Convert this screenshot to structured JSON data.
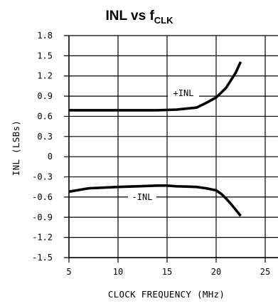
{
  "chart_data": {
    "type": "line",
    "title": {
      "main": "INL vs f",
      "sub": "CLK"
    },
    "xlabel": "CLOCK FREQUENCY (MHz)",
    "ylabel": "INL (LSBs)",
    "xlim": [
      5,
      25
    ],
    "ylim": [
      -1.5,
      1.8
    ],
    "xticks": [
      5,
      10,
      15,
      20,
      25
    ],
    "yticks": [
      1.8,
      1.5,
      1.2,
      0.9,
      0.6,
      0.3,
      0,
      -0.3,
      -0.6,
      -0.9,
      -1.2,
      -1.5
    ],
    "grid": true,
    "series": [
      {
        "name": "+INL",
        "x": [
          5,
          8,
          10,
          12,
          14,
          16,
          18,
          19,
          20,
          21,
          22,
          22.5
        ],
        "y": [
          0.69,
          0.69,
          0.69,
          0.69,
          0.69,
          0.7,
          0.73,
          0.8,
          0.88,
          1.02,
          1.25,
          1.41
        ]
      },
      {
        "name": "-INL",
        "x": [
          5,
          7,
          10,
          12,
          14,
          15,
          16,
          18,
          19,
          20,
          20.5,
          21,
          21.5,
          22,
          22.5
        ],
        "y": [
          -0.52,
          -0.47,
          -0.45,
          -0.44,
          -0.43,
          -0.43,
          -0.44,
          -0.45,
          -0.47,
          -0.5,
          -0.55,
          -0.62,
          -0.7,
          -0.79,
          -0.88
        ]
      }
    ]
  }
}
